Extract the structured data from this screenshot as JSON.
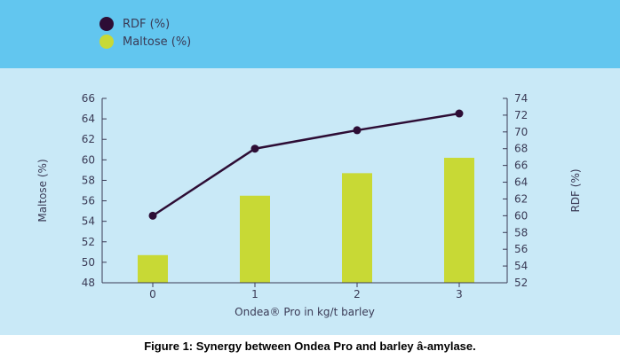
{
  "legend": {
    "rdf_label": "RDF (%)",
    "maltose_label": "Maltose (%)"
  },
  "caption": "Figure 1: Synergy between Ondea Pro and barley â-amylase.",
  "colors": {
    "legend_band": "#62c6ef",
    "plot_band": "#c9e9f7",
    "bar": "#c8d935",
    "line": "#2d0d35",
    "text": "#3a3a55"
  },
  "chart_data": {
    "type": "bar",
    "xlabel": "Ondea® Pro in kg/t barley",
    "categories": [
      "0",
      "1",
      "2",
      "3"
    ],
    "left_axis": {
      "label": "Maltose (%)",
      "ylim": [
        48,
        66
      ],
      "ticks": [
        48,
        50,
        52,
        54,
        56,
        58,
        60,
        62,
        64,
        66
      ]
    },
    "right_axis": {
      "label": "RDF (%)",
      "ylim": [
        52,
        74
      ],
      "ticks": [
        52,
        54,
        56,
        58,
        60,
        62,
        64,
        66,
        68,
        70,
        72,
        74
      ]
    },
    "series": [
      {
        "name": "Maltose (%)",
        "type": "bar",
        "axis": "left",
        "values": [
          50.7,
          56.5,
          58.7,
          60.2
        ]
      },
      {
        "name": "RDF (%)",
        "type": "line",
        "axis": "right",
        "values": [
          60.0,
          68.0,
          70.2,
          72.2
        ]
      }
    ],
    "grid": false,
    "legend_position": "top-left"
  }
}
